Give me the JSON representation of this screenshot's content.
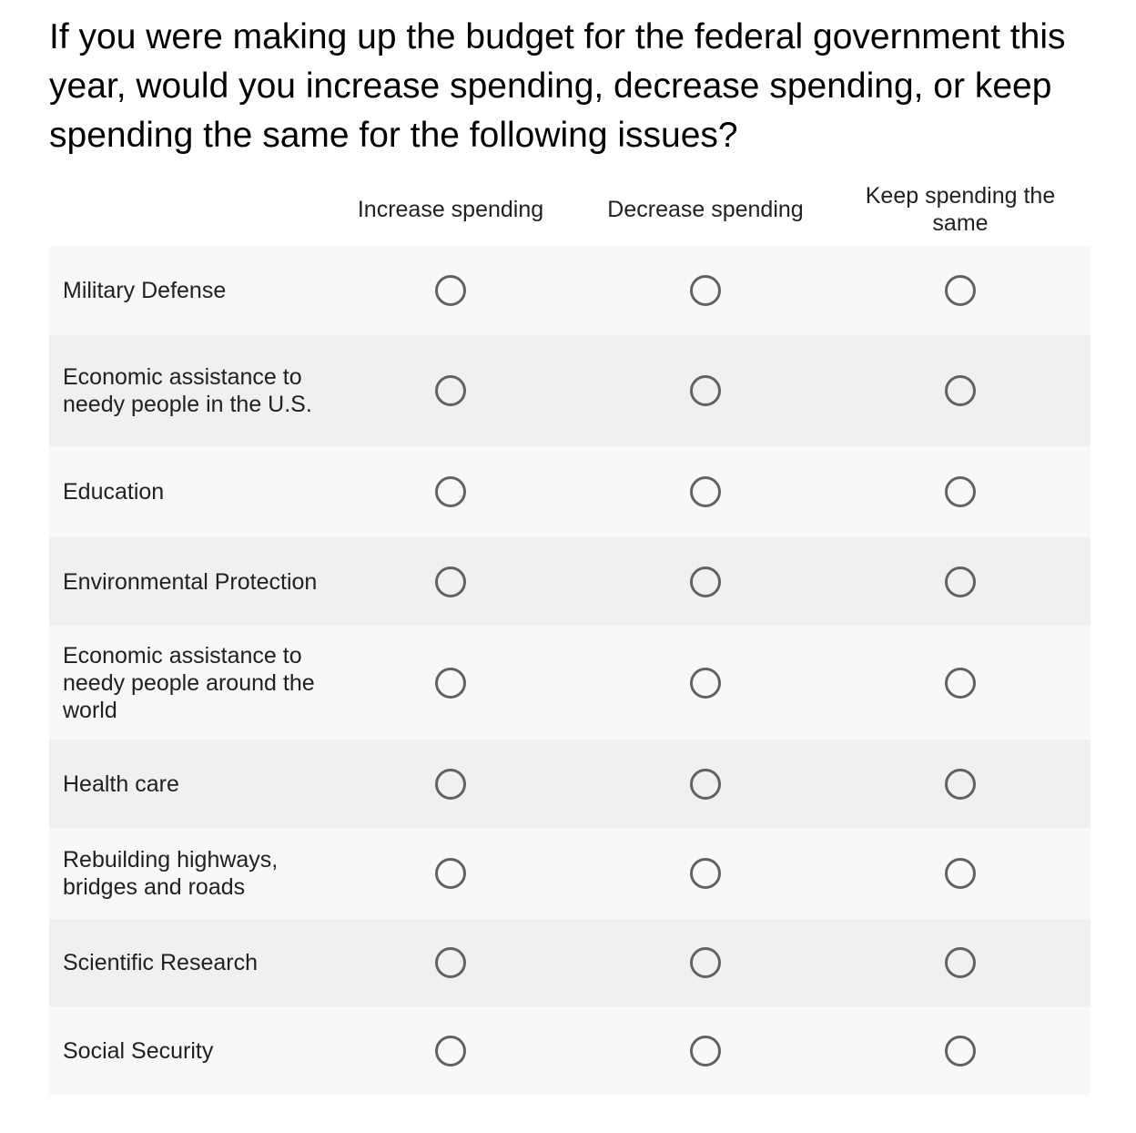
{
  "question": "If you were making up the budget for the federal government this year, would you increase spending, decrease spending, or keep spending the same for the following issues?",
  "columns": [
    "Increase spending",
    "Decrease spending",
    "Keep spending the same"
  ],
  "rows": [
    {
      "label": "Military Defense"
    },
    {
      "label": "Economic assistance to needy people in the U.S."
    },
    {
      "label": "Education"
    },
    {
      "label": "Environmental Protection"
    },
    {
      "label": "Economic assistance to needy people around the world"
    },
    {
      "label": "Health care"
    },
    {
      "label": "Rebuilding highways, bridges and roads"
    },
    {
      "label": "Scientific Research"
    },
    {
      "label": "Social Security"
    }
  ],
  "colors": {
    "radio_border": "#5f6368",
    "row_light": "#f8f8f8",
    "row_dark": "#f0f0f0"
  }
}
